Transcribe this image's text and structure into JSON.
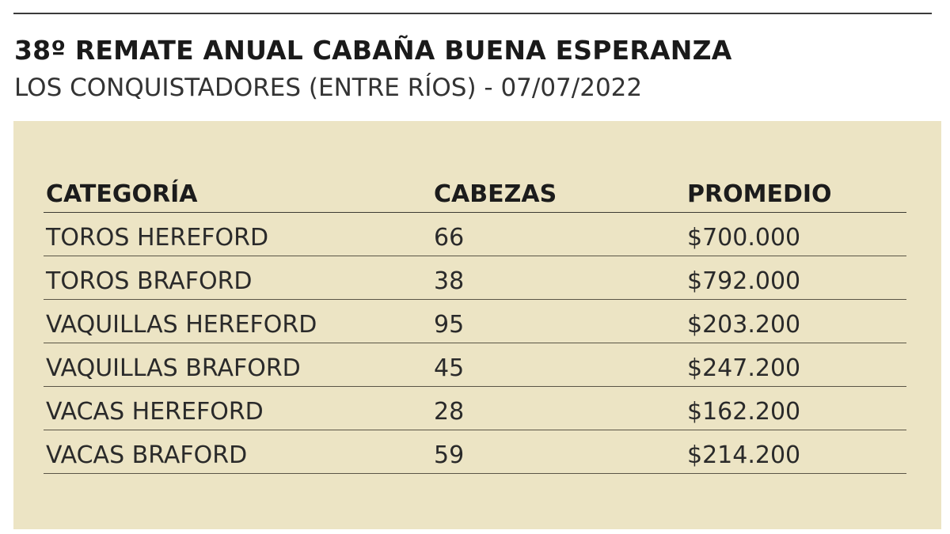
{
  "chart_data": {
    "type": "table",
    "title": "38º REMATE ANUAL CABAÑA BUENA ESPERANZA",
    "subtitle": "LOS CONQUISTADORES (ENTRE RÍOS) - 07/07/2022",
    "columns": [
      "CATEGORÍA",
      "CABEZAS",
      "PROMEDIO"
    ],
    "rows": [
      [
        "TOROS HEREFORD",
        "66",
        "$700.000"
      ],
      [
        "TOROS BRAFORD",
        "38",
        "$792.000"
      ],
      [
        "VAQUILLAS HEREFORD",
        "95",
        "$203.200"
      ],
      [
        "VAQUILLAS BRAFORD",
        "45",
        "$247.200"
      ],
      [
        "VACAS HEREFORD",
        "28",
        "$162.200"
      ],
      [
        "VACAS BRAFORD",
        "59",
        "$214.200"
      ]
    ]
  },
  "colors": {
    "panel_background": "#ece4c4",
    "rule": "#3b3b3b"
  }
}
